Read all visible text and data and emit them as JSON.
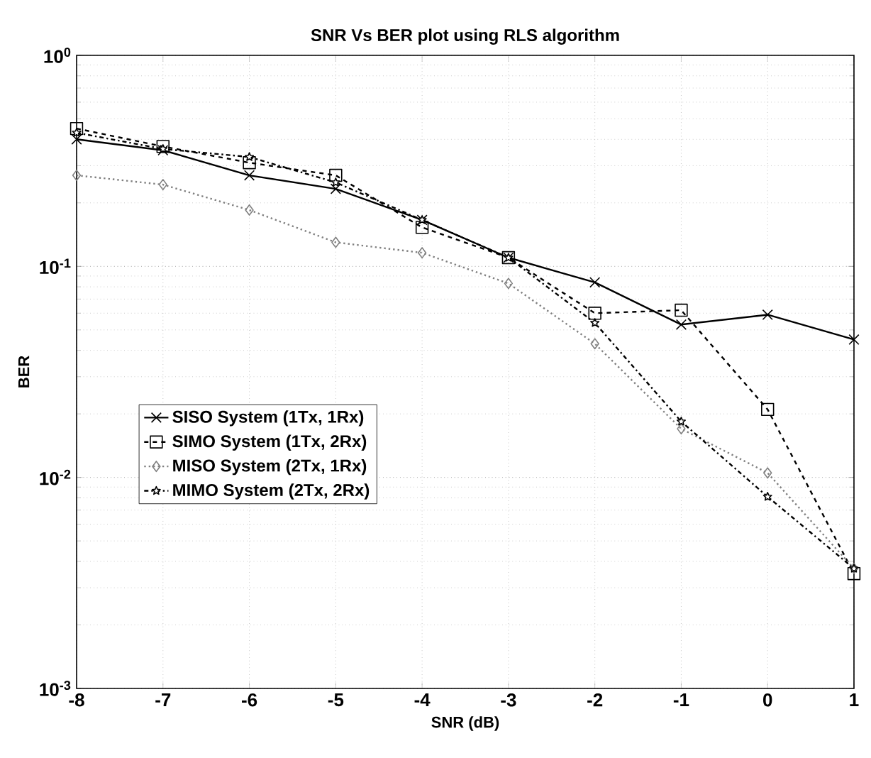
{
  "chart_data": {
    "type": "line",
    "title": "SNR Vs BER plot using RLS algorithm",
    "xlabel": "SNR (dB)",
    "ylabel": "BER",
    "x": [
      -8,
      -7,
      -6,
      -5,
      -4,
      -3,
      -2,
      -1,
      0,
      1
    ],
    "series": [
      {
        "name": "SISO System (1Tx, 1Rx)",
        "color": "#000000",
        "marker": "cross",
        "line_style": "solid",
        "values": [
          0.4,
          0.355,
          0.27,
          0.233,
          0.166,
          0.11,
          0.084,
          0.053,
          0.059,
          0.045
        ]
      },
      {
        "name": "SIMO System (1Tx, 2Rx)",
        "color": "#000000",
        "marker": "square",
        "line_style": "dashed",
        "values": [
          0.45,
          0.37,
          0.31,
          0.27,
          0.153,
          0.11,
          0.06,
          0.062,
          0.021,
          0.0035
        ]
      },
      {
        "name": "MISO System (2Tx, 1Rx)",
        "color": "#808080",
        "marker": "diamond",
        "line_style": "dotted",
        "values": [
          0.27,
          0.244,
          0.185,
          0.13,
          0.116,
          0.083,
          0.043,
          0.017,
          0.0105,
          0.0037
        ]
      },
      {
        "name": "MIMO System (2Tx, 2Rx)",
        "color": "#000000",
        "marker": "star",
        "line_style": "dashdot",
        "values": [
          0.43,
          0.36,
          0.33,
          0.25,
          0.166,
          0.11,
          0.054,
          0.0184,
          0.0081,
          0.0037
        ]
      }
    ],
    "log": "y",
    "xlim": [
      -8,
      1
    ],
    "ylim": [
      0.001,
      1
    ],
    "xticks": [
      -8,
      -7,
      -6,
      -5,
      -4,
      -3,
      -2,
      -1,
      0,
      1
    ],
    "yticks": [
      {
        "value": 0.001,
        "label": "10$^{-3}$"
      },
      {
        "value": 0.01,
        "label": "10$^{-2}$"
      },
      {
        "value": 0.1,
        "label": "10$^{-1}$"
      },
      {
        "value": 1,
        "label": "10$^{0}$"
      }
    ],
    "grid": true,
    "legend": "left"
  }
}
